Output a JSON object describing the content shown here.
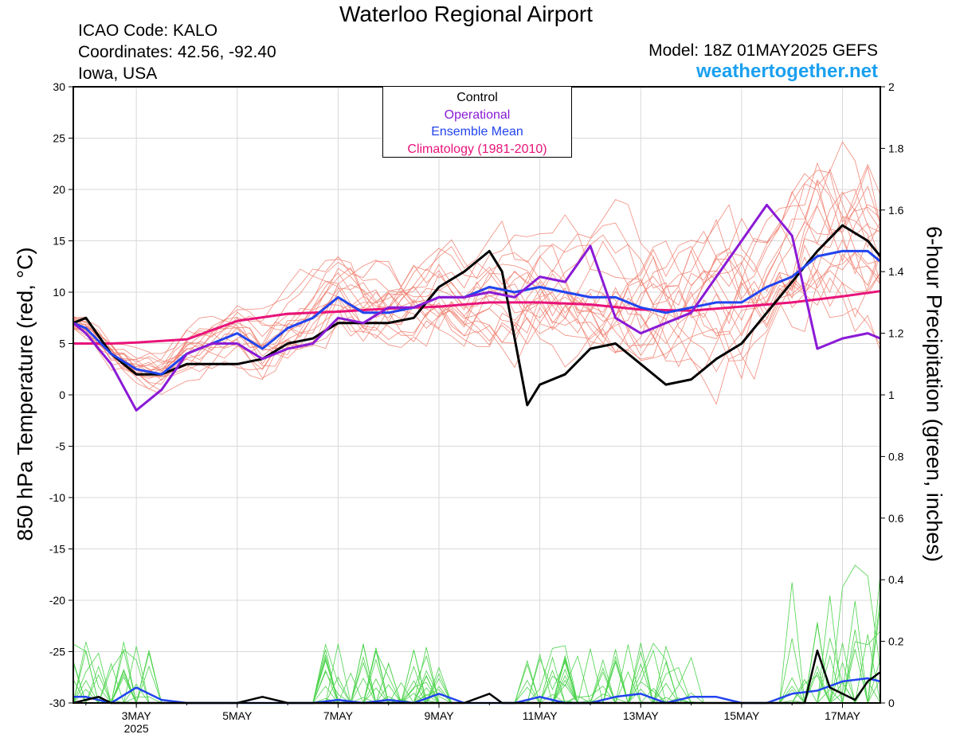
{
  "header": {
    "title": "Waterloo Regional Airport",
    "icao": "ICAO Code: KALO",
    "coords": "Coordinates: 42.56, -92.40",
    "region": "Iowa, USA",
    "model": "Model: 18Z 01MAY2025 GEFS",
    "brand": "weathertogether.net"
  },
  "chart_data": {
    "type": "line",
    "ylabel": "850 hPa Temperature (red, °C)",
    "y2label": "6-hour Precipitation (green, inches)",
    "x_start": "2025-05-01 18Z",
    "x_end": "2025-05-17 18Z",
    "ylim": [
      -30,
      30
    ],
    "y2lim": [
      0,
      2
    ],
    "yticks": [
      "30",
      "25",
      "20",
      "15",
      "10",
      "5",
      "0",
      "-5",
      "-10",
      "-15",
      "-20",
      "-25",
      "-30"
    ],
    "y2ticks": [
      "2",
      "1.8",
      "1.6",
      "1.4",
      "1.2",
      "1",
      "0.8",
      "0.6",
      "0.4",
      "0.2",
      "0"
    ],
    "xticks": [
      {
        "label": "3MAY",
        "sub": "2025",
        "day": 3
      },
      {
        "label": "5MAY",
        "sub": "",
        "day": 5
      },
      {
        "label": "7MAY",
        "sub": "",
        "day": 7
      },
      {
        "label": "9MAY",
        "sub": "",
        "day": 9
      },
      {
        "label": "11MAY",
        "sub": "",
        "day": 11
      },
      {
        "label": "13MAY",
        "sub": "",
        "day": 13
      },
      {
        "label": "15MAY",
        "sub": "",
        "day": 15
      },
      {
        "label": "17MAY",
        "sub": "",
        "day": 17
      }
    ],
    "legend": {
      "control": "Control",
      "operational": "Operational",
      "mean": "Ensemble Mean",
      "clim": "Climatology (1981-2010)"
    },
    "colors": {
      "control": "#000000",
      "operational": "#8a1ad6",
      "mean": "#2244ee",
      "clim": "#e8137a",
      "members": "#f08070",
      "precip_members": "#4cd34c"
    },
    "series": {
      "operational_temp": {
        "days": [
          1.75,
          2.0,
          2.5,
          3.0,
          3.5,
          4.0,
          4.5,
          5.0,
          5.5,
          6.0,
          6.5,
          7.0,
          7.5,
          8.0,
          8.5,
          9.0,
          9.5,
          10.0,
          10.5,
          11.0,
          11.5,
          12.0,
          12.5,
          13.0,
          13.5,
          14.0,
          14.5,
          15.0,
          15.5,
          16.0,
          16.5,
          17.0,
          17.5,
          17.75
        ],
        "values": [
          7,
          6,
          3,
          -1.5,
          0.5,
          4,
          5,
          5,
          3.5,
          4.5,
          5,
          7.5,
          7,
          8.5,
          8.5,
          9.5,
          9.5,
          10,
          9.5,
          11.5,
          11,
          14.5,
          7.5,
          6,
          7,
          8,
          11.5,
          15,
          18.5,
          15.5,
          4.5,
          5.5,
          6,
          5.5
        ]
      },
      "control_temp": {
        "days": [
          1.75,
          2.0,
          2.5,
          3.0,
          3.5,
          4.0,
          4.5,
          5.0,
          5.5,
          6.0,
          6.5,
          7.0,
          7.5,
          8.0,
          8.5,
          9.0,
          9.5,
          10.0,
          10.25,
          10.75,
          11.0,
          11.5,
          12.0,
          12.5,
          13.0,
          13.5,
          14.0,
          14.5,
          15.0,
          15.5,
          16.0,
          16.5,
          17.0,
          17.5,
          17.75
        ],
        "values": [
          7,
          7.5,
          4,
          2,
          2,
          3,
          3,
          3,
          3.5,
          5,
          5.5,
          7,
          7,
          7,
          7.5,
          10.5,
          12,
          14,
          12,
          -1,
          1,
          2,
          4.5,
          5,
          3,
          1,
          1.5,
          3.5,
          5,
          8,
          11,
          14,
          16.5,
          15,
          13.5
        ]
      },
      "mean_temp": {
        "days": [
          1.75,
          2.0,
          2.5,
          3.0,
          3.5,
          4.0,
          4.5,
          5.0,
          5.5,
          6.0,
          6.5,
          7.0,
          7.5,
          8.0,
          8.5,
          9.0,
          9.5,
          10.0,
          10.5,
          11.0,
          11.5,
          12.0,
          12.5,
          13.0,
          13.5,
          14.0,
          14.5,
          15.0,
          15.5,
          16.0,
          16.5,
          17.0,
          17.5,
          17.75
        ],
        "values": [
          7,
          6.5,
          4,
          2.5,
          2,
          4,
          5,
          6,
          4.5,
          6.5,
          7.5,
          9.5,
          8,
          8,
          8.5,
          9.5,
          9.5,
          10.5,
          10,
          10.5,
          10,
          9.5,
          9.5,
          8.5,
          8,
          8.5,
          9,
          9,
          10.5,
          11.5,
          13.5,
          14,
          14,
          13
        ]
      },
      "clim_temp": {
        "days": [
          1.75,
          2.5,
          3.0,
          4.0,
          5.0,
          6.0,
          7.0,
          8.0,
          9.0,
          10.0,
          11.0,
          12.0,
          13.0,
          14.0,
          15.0,
          16.0,
          17.0,
          17.75
        ],
        "values": [
          5,
          5,
          5.1,
          5.4,
          7.2,
          7.9,
          8.1,
          8.4,
          8.6,
          9.0,
          9.0,
          8.8,
          8.3,
          8.2,
          8.6,
          9.0,
          9.6,
          10.1
        ]
      },
      "mean_precip": {
        "days": [
          1.75,
          2.0,
          2.5,
          3.0,
          3.5,
          4.0,
          5.0,
          6.0,
          6.5,
          7.0,
          7.5,
          8.0,
          8.5,
          9.0,
          9.5,
          10.0,
          10.5,
          11.0,
          11.5,
          12.0,
          12.5,
          13.0,
          13.5,
          14.0,
          14.5,
          15.0,
          15.5,
          16.0,
          16.5,
          17.0,
          17.5,
          17.75
        ],
        "values": [
          0.02,
          0.02,
          0.0,
          0.05,
          0.01,
          0.0,
          0.0,
          0.0,
          0.0,
          0.01,
          0.0,
          0.01,
          0.0,
          0.03,
          0.0,
          0.0,
          0.0,
          0.02,
          0.0,
          0.0,
          0.02,
          0.03,
          0.0,
          0.02,
          0.02,
          0.0,
          0.0,
          0.03,
          0.04,
          0.07,
          0.08,
          0.07
        ]
      },
      "control_precip": {
        "days": [
          1.75,
          2.0,
          2.25,
          2.5,
          3.0,
          5.0,
          5.5,
          6.0,
          9.5,
          10.0,
          10.25,
          10.5,
          16.25,
          16.5,
          16.75,
          17.0,
          17.25,
          17.5,
          17.75
        ],
        "values": [
          0.0,
          0.01,
          0.02,
          0.0,
          0.0,
          0.0,
          0.02,
          0.0,
          0.0,
          0.03,
          0.0,
          0.0,
          0.0,
          0.17,
          0.05,
          0.03,
          0.01,
          0.07,
          0.1
        ]
      }
    }
  }
}
